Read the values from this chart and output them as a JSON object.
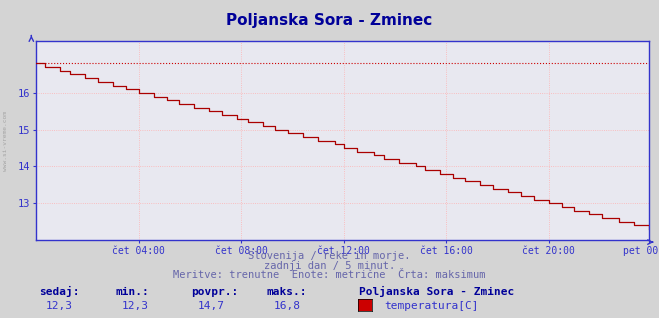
{
  "title": "Poljanska Sora - Zminec",
  "title_color": "#000099",
  "title_fontsize": 11,
  "bg_color": "#d4d4d4",
  "plot_bg_color": "#e8e8f0",
  "grid_color": "#ffb0b0",
  "axis_color": "#3333cc",
  "line_color": "#aa0000",
  "max_line_color": "#cc0000",
  "ylim_min": 12.0,
  "ylim_max": 17.4,
  "yticks": [
    13,
    14,
    15,
    16
  ],
  "tick_label_color": "#3333bb",
  "xlabel_ticks": [
    "čet 04:00",
    "čet 08:00",
    "čet 12:00",
    "čet 16:00",
    "čet 20:00",
    "pet 00:00"
  ],
  "max_value": 16.8,
  "min_value": 12.3,
  "avg_value": 14.7,
  "current_value": 12.3,
  "subtitle1": "Slovenija / reke in morje.",
  "subtitle2": "zadnji dan / 5 minut.",
  "subtitle3": "Meritve: trenutne  Enote: metrične  Črta: maksimum",
  "subtitle_color": "#6666aa",
  "legend_station": "Poljanska Sora - Zminec",
  "legend_param": "temperatura[C]",
  "legend_swatch_color": "#cc0000",
  "left_label": "www.si-vreme.com",
  "stat_labels": [
    "sedaj:",
    "min.:",
    "povpr.:",
    "maks.:"
  ],
  "stat_values": [
    "12,3",
    "12,3",
    "14,7",
    "16,8"
  ],
  "stat_label_color": "#000099",
  "stat_value_color": "#3333cc",
  "n_points": 288
}
